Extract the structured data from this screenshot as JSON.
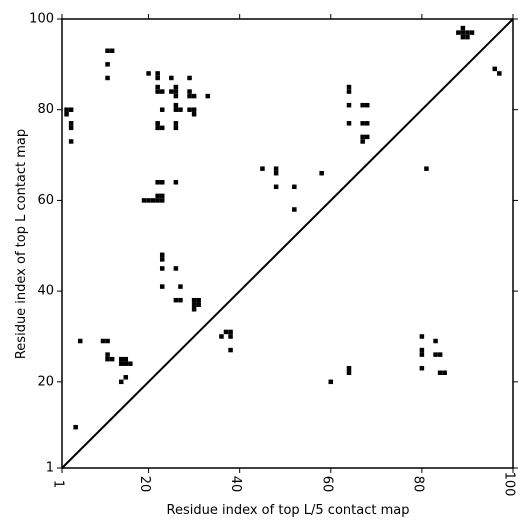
{
  "chart_data": {
    "type": "heatmap",
    "title": "",
    "xlabel": "Residue index of top L/5 contact map",
    "ylabel": "Residue index of top L contact map",
    "xlim": [
      1,
      100
    ],
    "ylim": [
      1,
      100
    ],
    "x_ticks": [
      1,
      20,
      40,
      60,
      80,
      100
    ],
    "y_ticks": [
      1,
      20,
      40,
      60,
      80,
      100
    ],
    "diagonal": true,
    "cell_color": "#000000",
    "lower_triangle_points": [
      [
        4,
        10
      ],
      [
        5,
        29
      ],
      [
        10,
        29
      ],
      [
        11,
        29
      ],
      [
        11,
        26
      ],
      [
        11,
        25
      ],
      [
        12,
        25
      ],
      [
        14,
        25
      ],
      [
        15,
        25
      ],
      [
        14,
        24
      ],
      [
        15,
        24
      ],
      [
        16,
        24
      ],
      [
        14,
        20
      ],
      [
        15,
        21
      ],
      [
        30,
        38
      ],
      [
        31,
        38
      ],
      [
        30,
        37
      ],
      [
        31,
        37
      ],
      [
        30,
        36
      ],
      [
        36,
        30
      ],
      [
        37,
        31
      ],
      [
        38,
        31
      ],
      [
        38,
        30
      ],
      [
        38,
        27
      ],
      [
        60,
        20
      ],
      [
        64,
        23
      ],
      [
        64,
        22
      ],
      [
        80,
        30
      ],
      [
        80,
        27
      ],
      [
        80,
        26
      ],
      [
        80,
        23
      ],
      [
        83,
        29
      ],
      [
        83,
        26
      ],
      [
        84,
        26
      ],
      [
        84,
        22
      ],
      [
        85,
        22
      ]
    ],
    "upper_triangle_points": [
      [
        2,
        80
      ],
      [
        2,
        79
      ],
      [
        3,
        80
      ],
      [
        3,
        77
      ],
      [
        3,
        76
      ],
      [
        3,
        73
      ],
      [
        11,
        93
      ],
      [
        12,
        93
      ],
      [
        11,
        90
      ],
      [
        11,
        87
      ],
      [
        20,
        88
      ],
      [
        22,
        88
      ],
      [
        22,
        87
      ],
      [
        22,
        85
      ],
      [
        22,
        84
      ],
      [
        23,
        84
      ],
      [
        22,
        77
      ],
      [
        22,
        76
      ],
      [
        23,
        76
      ],
      [
        23,
        80
      ],
      [
        25,
        87
      ],
      [
        25,
        84
      ],
      [
        26,
        85
      ],
      [
        26,
        84
      ],
      [
        26,
        83
      ],
      [
        26,
        81
      ],
      [
        26,
        80
      ],
      [
        27,
        80
      ],
      [
        26,
        77
      ],
      [
        26,
        76
      ],
      [
        29,
        87
      ],
      [
        29,
        84
      ],
      [
        29,
        83
      ],
      [
        30,
        83
      ],
      [
        29,
        80
      ],
      [
        30,
        80
      ],
      [
        30,
        79
      ],
      [
        33,
        83
      ],
      [
        22,
        64
      ],
      [
        23,
        64
      ],
      [
        26,
        64
      ],
      [
        19,
        60
      ],
      [
        20,
        60
      ],
      [
        21,
        60
      ],
      [
        22,
        60
      ],
      [
        23,
        60
      ],
      [
        22,
        61
      ],
      [
        23,
        61
      ],
      [
        23,
        48
      ],
      [
        23,
        47
      ],
      [
        23,
        45
      ],
      [
        26,
        45
      ],
      [
        23,
        41
      ],
      [
        26,
        38
      ],
      [
        27,
        38
      ],
      [
        27,
        41
      ],
      [
        45,
        67
      ],
      [
        48,
        67
      ],
      [
        48,
        66
      ],
      [
        48,
        63
      ],
      [
        52,
        63
      ],
      [
        52,
        58
      ],
      [
        58,
        66
      ],
      [
        64,
        85
      ],
      [
        64,
        84
      ],
      [
        64,
        81
      ],
      [
        64,
        77
      ],
      [
        67,
        81
      ],
      [
        68,
        81
      ],
      [
        67,
        77
      ],
      [
        68,
        77
      ],
      [
        67,
        74
      ],
      [
        68,
        74
      ],
      [
        67,
        73
      ],
      [
        81,
        67
      ],
      [
        88,
        97
      ],
      [
        89,
        97
      ],
      [
        90,
        97
      ],
      [
        91,
        97
      ],
      [
        89,
        98
      ],
      [
        89,
        96
      ],
      [
        90,
        96
      ],
      [
        96,
        89
      ],
      [
        97,
        88
      ]
    ]
  }
}
